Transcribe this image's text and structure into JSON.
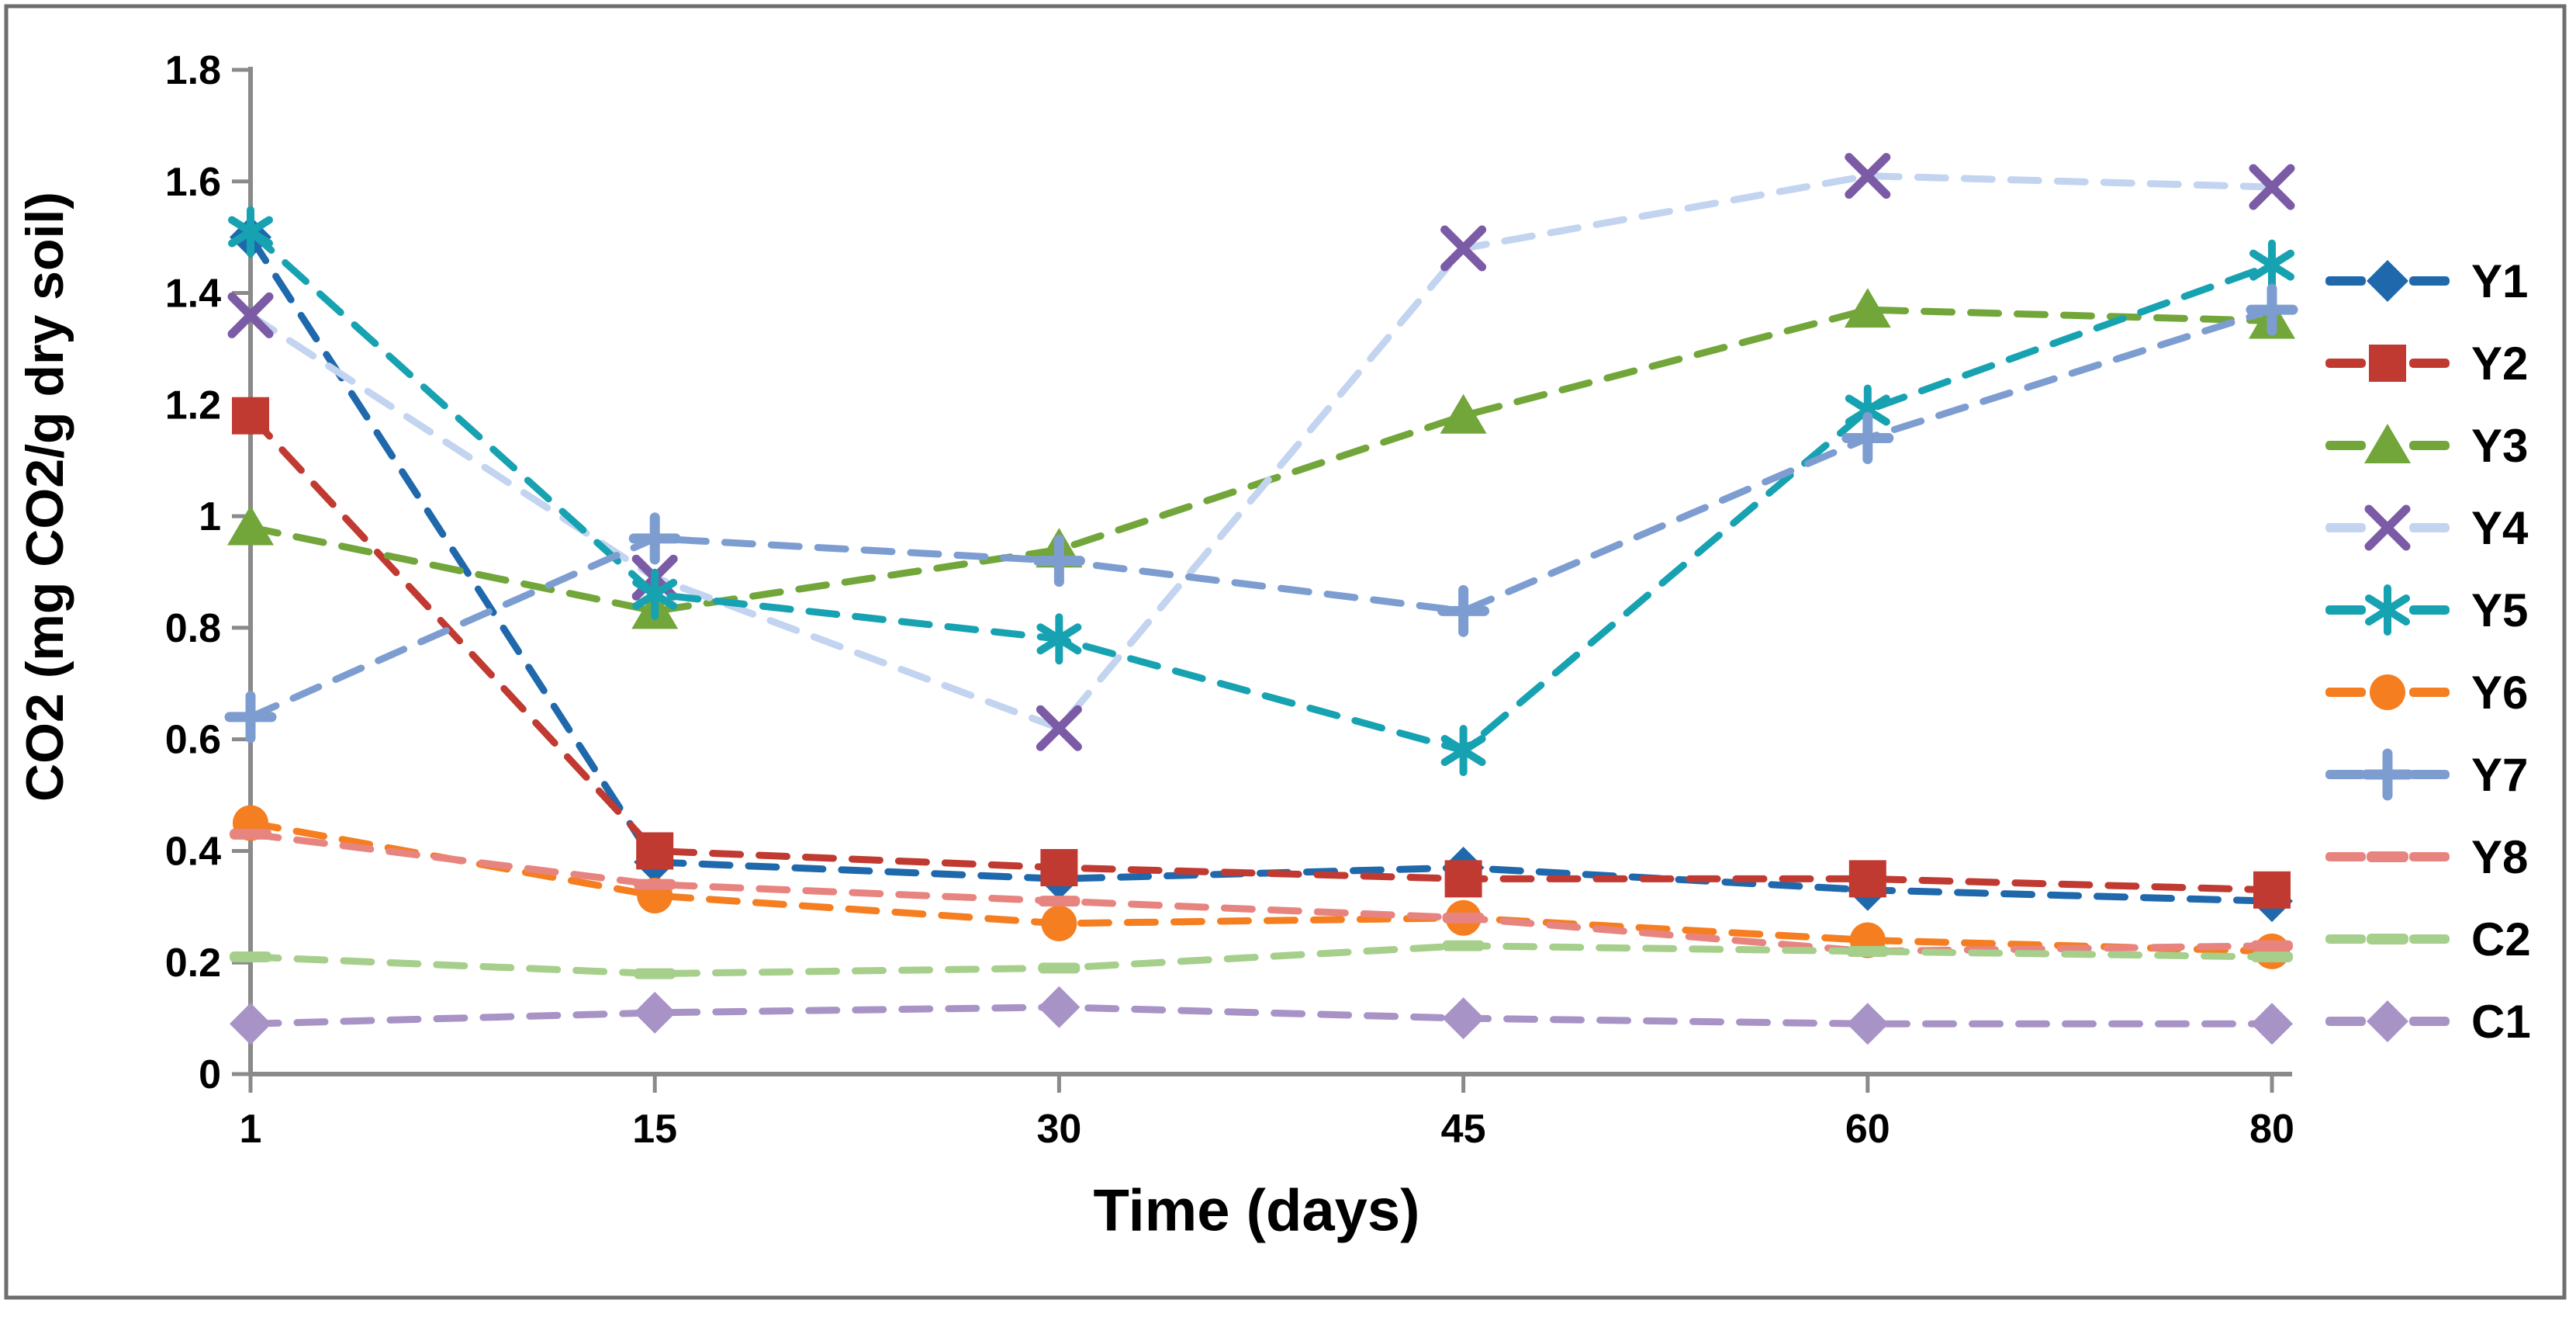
{
  "chart_data": {
    "type": "line",
    "title": "",
    "xlabel": "Time (days)",
    "ylabel": "CO2 (mg CO2/g dry soil)",
    "categories": [
      "1",
      "15",
      "30",
      "45",
      "60",
      "80"
    ],
    "y_axis": {
      "min": 0,
      "max": 1.8,
      "step": 0.2,
      "tick_labels": [
        "0",
        "0.2",
        "0.4",
        "0.6",
        "0.8",
        "1",
        "1.2",
        "1.4",
        "1.6",
        "1.8"
      ]
    },
    "grid": false,
    "line_style": "dashed",
    "legend_position": "right",
    "series": [
      {
        "name": "Y1",
        "color": "#1F68AC",
        "marker": "diamond",
        "marker_color": "#1F68AC",
        "values": [
          1.5,
          0.38,
          0.35,
          0.37,
          0.33,
          0.31
        ]
      },
      {
        "name": "Y2",
        "color": "#C03A32",
        "marker": "square",
        "marker_color": "#C03A32",
        "values": [
          1.18,
          0.4,
          0.37,
          0.35,
          0.35,
          0.33
        ]
      },
      {
        "name": "Y3",
        "color": "#72A63A",
        "marker": "triangle",
        "marker_color": "#72A63A",
        "values": [
          0.98,
          0.83,
          0.94,
          1.18,
          1.37,
          1.35
        ]
      },
      {
        "name": "Y4",
        "color": "#C3D4F0",
        "marker": "x",
        "marker_color": "#7B5BA5",
        "values": [
          1.36,
          0.89,
          0.62,
          1.48,
          1.61,
          1.59
        ]
      },
      {
        "name": "Y5",
        "color": "#17A2B2",
        "marker": "asterisk",
        "marker_color": "#17A2B2",
        "values": [
          1.51,
          0.86,
          0.78,
          0.58,
          1.19,
          1.45
        ]
      },
      {
        "name": "Y6",
        "color": "#F57E20",
        "marker": "circle",
        "marker_color": "#F57E20",
        "values": [
          0.45,
          0.32,
          0.27,
          0.28,
          0.24,
          0.22
        ]
      },
      {
        "name": "Y7",
        "color": "#7D9DD1",
        "marker": "plus",
        "marker_color": "#7D9DD1",
        "values": [
          0.64,
          0.96,
          0.92,
          0.83,
          1.14,
          1.37
        ]
      },
      {
        "name": "Y8",
        "color": "#E8847F",
        "marker": "dash",
        "marker_color": "#E8847F",
        "values": [
          0.43,
          0.34,
          0.31,
          0.28,
          0.22,
          0.23
        ]
      },
      {
        "name": "C2",
        "color": "#A6CF8C",
        "marker": "dash",
        "marker_color": "#A6CF8C",
        "values": [
          0.21,
          0.18,
          0.19,
          0.23,
          0.22,
          0.21
        ]
      },
      {
        "name": "C1",
        "color": "#A893C7",
        "marker": "diamond",
        "marker_color": "#A893C7",
        "values": [
          0.09,
          0.11,
          0.12,
          0.1,
          0.09,
          0.09
        ]
      }
    ],
    "colors": {
      "axis": "#8A8A8A",
      "border": "#6E6E6E",
      "text": "#000000"
    }
  }
}
